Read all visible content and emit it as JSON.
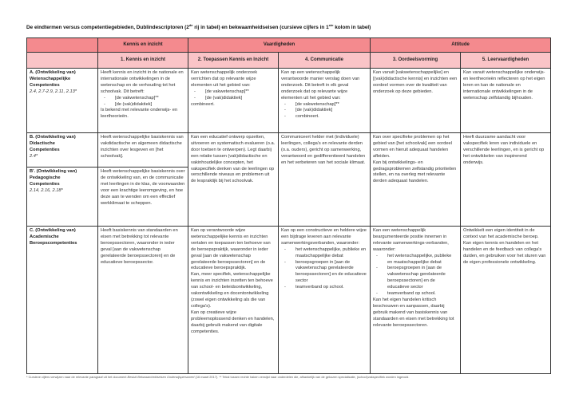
{
  "title": {
    "part1": "De eindtermen versus competentiegebieden, Dublindescriptoren (2",
    "sup1": "de",
    "part2": " rij in tabel) en bekwaamheidseisen (cursieve cijfers in 1",
    "sup2": "ste",
    "part3": " kolom in tabel)"
  },
  "colors": {
    "header_dark": "#f48a8e",
    "header_light": "#fac4c7"
  },
  "header": {
    "groups": [
      "",
      "Kennis en inzicht",
      "Vaardigheden",
      "Attitude"
    ],
    "columns": [
      "",
      "1. Kennis en inzicht",
      "2. Toepassen Kennis en Inzicht",
      "4. Communicatie",
      "3. Oordeelsvorming",
      "5. Leervaardigheden"
    ]
  },
  "rows": [
    {
      "label": [
        "A. (Ontwikkeling van)",
        "Wetenschappelijke",
        "Competenties"
      ],
      "codes": "2.4, 2.7-2.9, 2.11, 2.13*",
      "cells": [
        [
          {
            "t": "Heeft kennis en inzicht in de nationale en internationale ontwikkelingen in de wetenschap en de verhouding tot het schoolvak. Dit betreft:"
          },
          {
            "b": "[de vakwetenschap]**"
          },
          {
            "b": "[de (vak)didaktiek]"
          },
          {
            "t": "Is bekend met relevante onderwijs- en leertheorieën."
          }
        ],
        [
          {
            "t": "Kan wetenschappelijk onderzoek verrichten dat op relevante wijze elementen uit het gebied van:"
          },
          {
            "b": "[de vakwetenschap]**"
          },
          {
            "b": "[de (vak)didaktiek]"
          },
          {
            "t": "combineert."
          }
        ],
        [
          {
            "t": "Kan op een wetenschappelijk verantwoorde manier verslag doen van onderzoek. Dit betreft in elk geval onderzoek dat op relevante wijze elementen uit het gebied van:"
          },
          {
            "b": "[de vakwetenschap]**"
          },
          {
            "b": "[de (vak)didaktiek]"
          },
          {
            "b": "combineert."
          }
        ],
        [
          {
            "t": "Kan vanuit [vakwetenschappelijke] en [(vak)didactische kennis] en inzichten een oordeel vormen over de kwaliteit van onderzoek op deze gebieden."
          }
        ],
        [
          {
            "t": "Kan vanuit wetenschappelijke onderwijs- en leertheorieën reflecteren op het eigen leren en kan de nationale en internationale ontwikkelingen in de wetenschap zelfstandig bijhouden."
          }
        ]
      ]
    },
    {
      "label": [
        "B. (Ontwikkeling van)",
        "Didactische",
        "Competenties"
      ],
      "codes": "2.4*",
      "cells": [
        [
          {
            "t": "Heeft wetenschappelijke basiskennis van vakdidactische en algemeen didactische inzichten over lesgeven en [het schoolvak]."
          }
        ],
        [
          {
            "t": "Kan een educatief ontwerp opzetten, uitvoeren en systematisch evalueren (o.a. door toetsen te ontwerpen). Legt daarbij een relatie tussen (vak)didactische en vakinhoudelijke concepten, het vakspecifiek denken van de leerlingen op verschillende niveaus en problemen uit de lespraktijk bij het schoolvak."
          }
        ],
        [
          {
            "t": "Communiceert helder met (individuele) leerlingen, collega's en relevante derden (o.a. ouders), gericht op samenwerking, verantwoord en gedifferentieerd handelen en het verbeteren van het sociale klimaat."
          }
        ],
        [
          {
            "t": "Kan over specifieke problemen op het gebied van [het schoolvak] een oordeel vormen en hieruit adequaat handelen afleiden."
          },
          {
            "t": "Kan bij ontwikkelings- en gedragsproblemen zelfstandig prioriteiten stellen, en na overleg met relevante derden adequaat handelen."
          }
        ],
        [
          {
            "t": "Heeft duurzame aandacht voor vakspecifiek leren van individuele en verschillende leerlingen, en is gericht op het ontwikkelen van inspirerend onderwijs."
          }
        ]
      ]
    },
    {
      "label": [
        "B'. (Ontwikkeling van)",
        "Pedagogische",
        "Competenties"
      ],
      "codes": "2.14, 2.16, 2.18*",
      "cells": [
        [
          {
            "t": "Heeft wetenschappelijke basiskennis over de ontwikkeling van, en de communicatie met leerlingen in de klas, de voorwaarden voor een krachtige leeromgeving, en hoe deze aan te wenden om een effectief werkklimaat te scheppen."
          }
        ]
      ]
    },
    {
      "label": [
        "C. (Ontwikkeling van)",
        "Academische",
        "Beroepscompetenties"
      ],
      "codes": "",
      "cells": [
        [
          {
            "t": "Heeft basiskennis van standaarden en eisen met betrekking tot relevante beroepssectoren, waaronder in ieder geval [aan de vakwetenschap gerelateerde beroepssectoren] en de educatieve beroepssector."
          }
        ],
        [
          {
            "t": "Kan op verantwoorde wijze wetenschappelijke kennis en inzichten vertalen en toepassen ten behoeve van de beroepspraktijk, waaronder in ieder geval [aan de vakwetenschap gerelateerde beroepssectoren] en de educatieve beroepspraktijk."
          },
          {
            "t": "Kan, meer specifiek, wetenschappelijke kennis en inzichten inzetten ten behoeve van school- en beleidsontwikkeling, vakontwikkeling en docentontwikkeling (zowel eigen ontwikkeling als die van collega's)."
          },
          {
            "t": "Kan op creatieve wijze probleemoplossend denken en handelen, daarbij gebruik makend van digitale competenties."
          }
        ],
        [
          {
            "t": "Kan op een constructieve en heldere wijze een bijdrage leveren aan relevante samenwerkingsverbanden, waaronder:"
          },
          {
            "b": "het wetenschappelijke, publieke en maatschappelijke debat"
          },
          {
            "b": "beroepsgroepen in [aan de vakwetenschap gerelateerde beroepssectoren] en de educatieve sector"
          },
          {
            "b": "teamverband op school."
          }
        ],
        [
          {
            "t": "Kan een wetenschappelijk beargumenteerde positie innemen in relevante samenwerkings-verbanden, waaronder:"
          },
          {
            "b": "het wetenschappelijke, publieke en maatschappelijke debat"
          },
          {
            "b": "beroepsgroepen in [aan de vakwetenschap gerelateerde beroepssectoren] en de educatieve sector"
          },
          {
            "b": "teamverband op school."
          },
          {
            "t": "Kan het eigen handelen kritisch beschouwen en aanpassen, daarbij gebruik makend van basiskennis van standaarden en eisen met betrekking tot relevante beroepssectoren."
          }
        ],
        [
          {
            "t": "Ontwikkelt een eigen identiteit in de context van het academische beroep."
          },
          {
            "t": "Kan eigen kennis en handelen en het handelen en de feedback van collega's duiden, en gebruiken voor het sturen van de eigen professionele ontwikkeling."
          }
        ]
      ]
    }
  ],
  "footnote": {
    "part1": "* Cursieve cijfers verwijzen naar de relevante paragraaf uit het document ",
    "doc": "Besluit Bekwaamheidseisen Onderwijspersoneel",
    "part2": " (16 maart 2017). ** Tekst tussen rechte haken verwijst naar onderdelen die, afhankelijk van de gekozen specialisatie, (school)vakspecifiek worden ingevuld."
  }
}
